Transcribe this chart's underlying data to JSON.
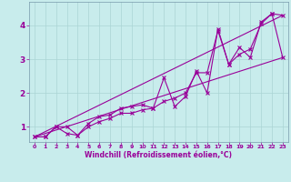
{
  "title": "",
  "xlabel": "Windchill (Refroidissement éolien,°C)",
  "ylabel": "",
  "background_color": "#c8ecec",
  "line_color": "#990099",
  "grid_color": "#aad4d4",
  "spine_color": "#7799aa",
  "xlim": [
    -0.5,
    23.5
  ],
  "ylim": [
    0.55,
    4.7
  ],
  "xticks": [
    0,
    1,
    2,
    3,
    4,
    5,
    6,
    7,
    8,
    9,
    10,
    11,
    12,
    13,
    14,
    15,
    16,
    17,
    18,
    19,
    20,
    21,
    22,
    23
  ],
  "yticks": [
    1,
    2,
    3,
    4
  ],
  "series1_x": [
    0,
    1,
    2,
    3,
    4,
    5,
    6,
    7,
    8,
    9,
    10,
    11,
    12,
    13,
    14,
    15,
    16,
    17,
    18,
    19,
    20,
    21,
    22,
    23
  ],
  "series1_y": [
    0.7,
    0.7,
    1.0,
    0.8,
    0.75,
    1.1,
    1.3,
    1.35,
    1.55,
    1.6,
    1.65,
    1.55,
    1.75,
    1.85,
    2.0,
    2.6,
    2.6,
    3.85,
    2.85,
    3.35,
    3.05,
    4.1,
    4.35,
    3.05
  ],
  "series2_x": [
    0,
    1,
    2,
    3,
    4,
    5,
    6,
    7,
    8,
    9,
    10,
    11,
    12,
    13,
    14,
    15,
    16,
    17,
    18,
    19,
    20,
    21,
    22,
    23
  ],
  "series2_y": [
    0.7,
    0.7,
    1.0,
    1.0,
    0.75,
    1.0,
    1.15,
    1.25,
    1.4,
    1.4,
    1.5,
    1.55,
    2.45,
    1.6,
    1.9,
    2.65,
    2.0,
    3.9,
    2.85,
    3.15,
    3.3,
    4.05,
    4.35,
    4.3
  ],
  "series3_x": [
    0,
    23
  ],
  "series3_y": [
    0.7,
    3.05
  ],
  "series4_x": [
    0,
    23
  ],
  "series4_y": [
    0.7,
    4.3
  ],
  "xlabel_fontsize": 5.5,
  "xlabel_fontweight": "bold",
  "xtick_fontsize": 4.5,
  "ytick_fontsize": 6.5,
  "linewidth": 0.8,
  "markersize": 2.5,
  "markeredgewidth": 0.8
}
